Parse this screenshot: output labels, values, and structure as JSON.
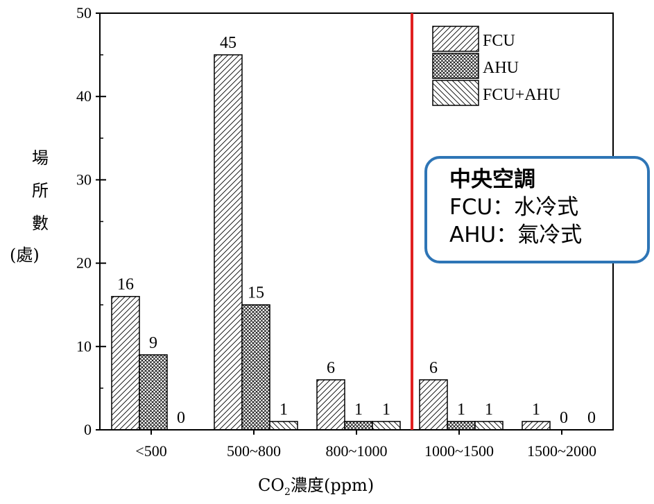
{
  "chart_data": {
    "type": "bar",
    "categories": [
      "<500",
      "500~800",
      "800~1000",
      "1000~1500",
      "1500~2000"
    ],
    "series": [
      {
        "name": "FCU",
        "values": [
          16,
          45,
          6,
          6,
          1
        ],
        "pattern": "diagonal-hatch"
      },
      {
        "name": "AHU",
        "values": [
          9,
          15,
          1,
          1,
          0
        ],
        "pattern": "cross-hatch"
      },
      {
        "name": "FCU+AHU",
        "values": [
          0,
          1,
          1,
          1,
          0
        ],
        "pattern": "back-diagonal-hatch"
      }
    ],
    "ylim": [
      0,
      50
    ],
    "yticks": [
      0,
      10,
      20,
      30,
      40,
      50
    ],
    "ylabel": [
      "場",
      "所",
      "數",
      "(處)"
    ],
    "xlabel": "CO2濃度(ppm)",
    "xlabel_main": "CO",
    "xlabel_sub": "2",
    "xlabel_rest": "濃度(ppm)",
    "reference_line": {
      "between": [
        "800~1000",
        "1000~1500"
      ],
      "color": "#e02020"
    },
    "legend_position": "top-right",
    "grid": false,
    "bar_color": "#000000"
  },
  "note": {
    "title": "中央空調",
    "lines": [
      "FCU：水冷式",
      "AHU：氣冷式"
    ],
    "border_color": "#2e75b6"
  }
}
